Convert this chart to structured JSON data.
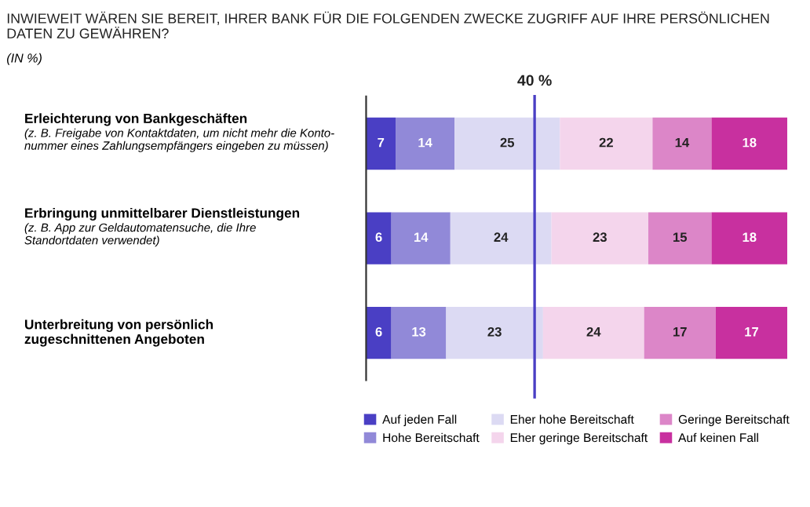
{
  "chart_data": {
    "type": "bar",
    "orientation": "horizontal",
    "stacked": true,
    "title": "INWIEWEIT WÄREN SIE BEREIT, IHRER BANK FÜR DIE FOLGENDEN ZWECKE ZUGRIFF AUF IHRE PERSÖNLICHEN DATEN ZU GEWÄHREN?",
    "subtitle": "(IN %)",
    "categories": [
      "Erleichterung von Bankgeschäften\n(z. B. Freigabe von Kontaktdaten, um nicht mehr die Konto-\nnummer eines Zahlungsempfängers eingeben zu müssen)",
      "Erbringung unmittelbarer Dienstleistungen\n(z. B. App zur Geldautomatensuche, die Ihre\nStandortdaten verwendet)",
      "Unterbreitung von persönlich\nzugeschnittenen Angeboten"
    ],
    "series": [
      {
        "name": "Auf jeden Fall",
        "color": "#4a3fc4",
        "values": [
          7,
          6,
          6
        ]
      },
      {
        "name": "Hohe Bereitschaft",
        "color": "#9189d8",
        "values": [
          14,
          14,
          13
        ]
      },
      {
        "name": "Eher hohe Bereitschaft",
        "color": "#dcdaf3",
        "values": [
          25,
          24,
          23
        ]
      },
      {
        "name": "Eher geringe Bereitschaft",
        "color": "#f4d5ec",
        "values": [
          22,
          23,
          24
        ]
      },
      {
        "name": "Geringe Bereitschaft",
        "color": "#dc86c8",
        "values": [
          14,
          15,
          17
        ]
      },
      {
        "name": "Auf keinen Fall",
        "color": "#c8309f",
        "values": [
          18,
          18,
          17
        ]
      }
    ],
    "xlim": [
      0,
      100
    ],
    "tick_labels": false,
    "data_labels": true,
    "grid": false,
    "legend": "bottom",
    "ref_lines": [
      {
        "axis": "x",
        "value": 40,
        "label": "40 %",
        "color": "#4a3fc4"
      }
    ]
  }
}
